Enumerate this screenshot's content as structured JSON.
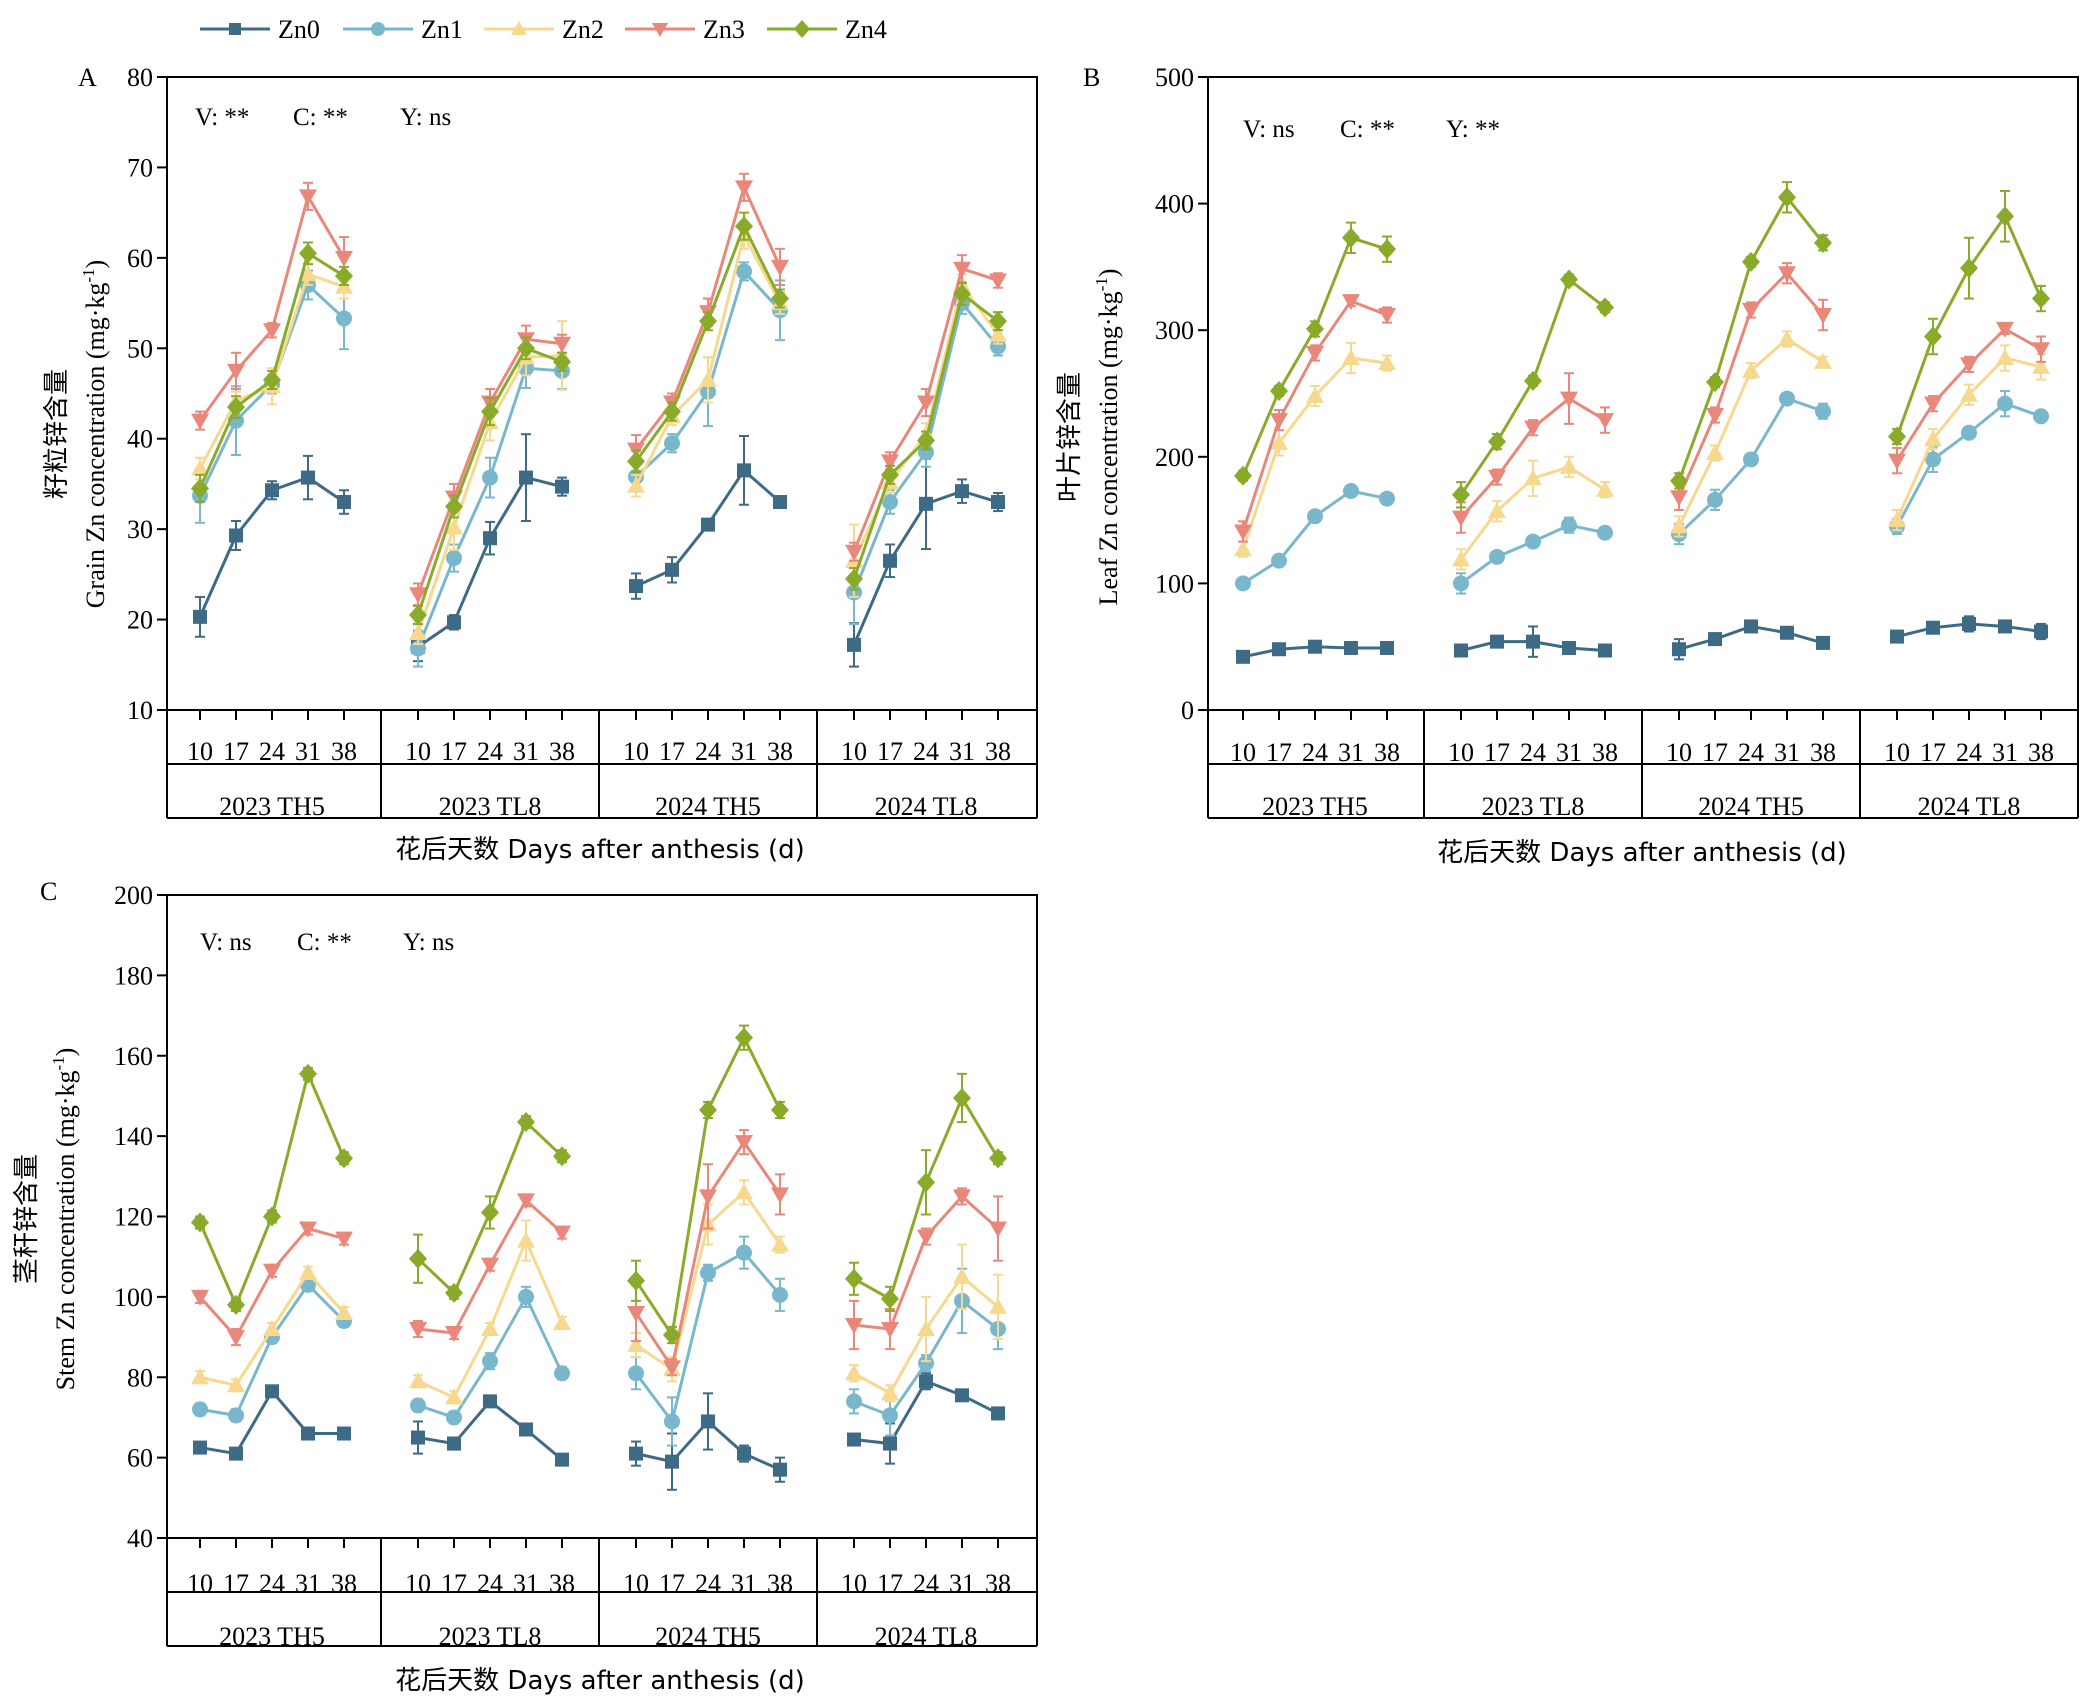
{
  "legend": {
    "entries": [
      {
        "name": "Zn0",
        "color": "#3d6a85",
        "marker": "square"
      },
      {
        "name": "Zn1",
        "color": "#79b7cc",
        "marker": "circle"
      },
      {
        "name": "Zn2",
        "color": "#f6d98f",
        "marker": "triangle-up"
      },
      {
        "name": "Zn3",
        "color": "#e9877b",
        "marker": "triangle-down"
      },
      {
        "name": "Zn4",
        "color": "#8aaa2a",
        "marker": "diamond"
      }
    ]
  },
  "chart_data": [
    {
      "panel": "A",
      "type": "line",
      "title": "",
      "annotation": [
        "V: **",
        "C: **",
        "Y: ns"
      ],
      "ylabel_cn": "籽粒锌含量",
      "ylabel": "Grain Zn concentration (mg·kg",
      "ylabel_sup": "-1",
      "ylabel_end": ")",
      "xlabel": "花后天数 Days after anthesis (d)",
      "ylim": [
        10,
        80
      ],
      "yticks": [
        10,
        20,
        30,
        40,
        50,
        60,
        70,
        80
      ],
      "days": [
        "10",
        "17",
        "24",
        "31",
        "38"
      ],
      "groups": [
        "2023 TH5",
        "2023 TL8",
        "2024 TH5",
        "2024 TL8"
      ],
      "series": [
        {
          "name": "Zn0",
          "values": [
            [
              20.3,
              29.3,
              34.3,
              35.7,
              33.0
            ],
            [
              17.0,
              19.7,
              29.0,
              35.7,
              34.7
            ],
            [
              23.7,
              25.5,
              30.5,
              36.5,
              33.0
            ],
            [
              17.2,
              26.5,
              32.8,
              34.2,
              33.0
            ]
          ],
          "errors": [
            [
              2.2,
              1.6,
              1.0,
              2.4,
              1.3
            ],
            [
              1.6,
              0.8,
              1.8,
              4.8,
              1.0
            ],
            [
              1.4,
              1.4,
              0.5,
              3.8,
              0.4
            ],
            [
              2.4,
              1.8,
              5.0,
              1.3,
              1.0
            ]
          ]
        },
        {
          "name": "Zn1",
          "values": [
            [
              33.7,
              42.0,
              46.0,
              57.0,
              53.3
            ],
            [
              16.8,
              26.8,
              35.7,
              47.8,
              47.5
            ],
            [
              35.8,
              39.5,
              45.2,
              58.5,
              54.2
            ],
            [
              23.0,
              33.0,
              38.5,
              55.0,
              50.2
            ]
          ],
          "errors": [
            [
              3.0,
              3.8,
              1.0,
              1.6,
              3.4
            ],
            [
              2.0,
              1.5,
              2.2,
              2.2,
              2.0
            ],
            [
              1.4,
              1.0,
              3.8,
              1.0,
              3.3
            ],
            [
              3.5,
              1.3,
              1.6,
              1.2,
              1.0
            ]
          ]
        },
        {
          "name": "Zn2",
          "values": [
            [
              36.7,
              44.2,
              45.8,
              58.2,
              56.8
            ],
            [
              18.5,
              30.2,
              41.8,
              49.0,
              49.2
            ],
            [
              34.8,
              42.5,
              46.5,
              62.5,
              55.0
            ],
            [
              26.5,
              35.2,
              40.5,
              57.0,
              51.5
            ]
          ],
          "errors": [
            [
              1.2,
              1.0,
              2.0,
              1.2,
              1.3
            ],
            [
              1.2,
              2.5,
              2.0,
              2.0,
              3.8
            ],
            [
              1.2,
              1.0,
              2.5,
              1.5,
              1.2
            ],
            [
              4.0,
              1.2,
              1.2,
              1.2,
              1.0
            ]
          ]
        },
        {
          "name": "Zn3",
          "values": [
            [
              42.0,
              47.5,
              52.0,
              66.8,
              60.0
            ],
            [
              22.8,
              33.5,
              44.0,
              51.0,
              50.5
            ],
            [
              38.8,
              44.0,
              54.0,
              67.8,
              59.0
            ],
            [
              27.5,
              37.5,
              44.0,
              58.8,
              57.5
            ]
          ],
          "errors": [
            [
              1.0,
              2.0,
              0.8,
              1.5,
              2.3
            ],
            [
              1.2,
              1.5,
              1.5,
              1.5,
              1.0
            ],
            [
              1.6,
              1.0,
              1.5,
              1.5,
              2.0
            ],
            [
              1.0,
              1.0,
              1.5,
              1.5,
              0.8
            ]
          ]
        },
        {
          "name": "Zn4",
          "values": [
            [
              34.5,
              43.5,
              46.5,
              60.5,
              58.0
            ],
            [
              20.5,
              32.5,
              43.0,
              50.0,
              48.5
            ],
            [
              37.5,
              43.0,
              53.0,
              63.5,
              55.5
            ],
            [
              24.5,
              36.0,
              39.8,
              56.0,
              53.0
            ]
          ],
          "errors": [
            [
              1.5,
              1.2,
              1.0,
              1.2,
              1.0
            ],
            [
              1.0,
              1.2,
              1.5,
              1.2,
              1.0
            ],
            [
              1.2,
              1.0,
              1.0,
              1.5,
              1.0
            ],
            [
              1.2,
              1.0,
              1.0,
              1.2,
              1.0
            ]
          ]
        }
      ]
    },
    {
      "panel": "B",
      "type": "line",
      "title": "",
      "annotation": [
        "V: ns",
        "C: **",
        "Y: **"
      ],
      "ylabel_cn": "叶片锌含量",
      "ylabel": "Leaf Zn concentration (mg·kg",
      "ylabel_sup": "-1",
      "ylabel_end": ")",
      "xlabel": "花后天数 Days after anthesis (d)",
      "ylim": [
        0,
        500
      ],
      "yticks": [
        0,
        100,
        200,
        300,
        400,
        500
      ],
      "days": [
        "10",
        "17",
        "24",
        "31",
        "38"
      ],
      "groups": [
        "2023 TH5",
        "2023 TL8",
        "2024 TH5",
        "2024 TL8"
      ],
      "series": [
        {
          "name": "Zn0",
          "values": [
            [
              42,
              48,
              50,
              49,
              49
            ],
            [
              47,
              54,
              54,
              49,
              47
            ],
            [
              48,
              56,
              66,
              61,
              53
            ],
            [
              58,
              65,
              68,
              66,
              62
            ]
          ],
          "errors": [
            [
              3,
              3,
              3,
              3,
              3
            ],
            [
              3,
              3,
              12,
              3,
              3
            ],
            [
              8,
              4,
              3,
              3,
              3
            ],
            [
              3,
              3,
              6,
              3,
              6
            ]
          ]
        },
        {
          "name": "Zn1",
          "values": [
            [
              100,
              118,
              153,
              173,
              167
            ],
            [
              100,
              121,
              133,
              146,
              140
            ],
            [
              139,
              166,
              198,
              246,
              236
            ],
            [
              145,
              198,
              219,
              242,
              232
            ]
          ],
          "errors": [
            [
              3,
              4,
              4,
              4,
              4
            ],
            [
              8,
              4,
              4,
              6,
              4
            ],
            [
              8,
              8,
              4,
              4,
              6
            ],
            [
              6,
              10,
              4,
              10,
              4
            ]
          ]
        },
        {
          "name": "Zn2",
          "values": [
            [
              127,
              211,
              248,
              278,
              274
            ],
            [
              119,
              157,
              183,
              192,
              174
            ],
            [
              145,
              203,
              268,
              293,
              275
            ],
            [
              150,
              214,
              249,
              278,
              271
            ]
          ],
          "errors": [
            [
              6,
              10,
              8,
              12,
              6
            ],
            [
              8,
              8,
              14,
              8,
              6
            ],
            [
              8,
              6,
              6,
              6,
              4
            ],
            [
              8,
              8,
              8,
              10,
              10
            ]
          ]
        },
        {
          "name": "Zn3",
          "values": [
            [
              141,
              229,
              282,
              323,
              312
            ],
            [
              152,
              184,
              223,
              246,
              229
            ],
            [
              168,
              233,
              316,
              345,
              312
            ],
            [
              197,
              242,
              273,
              301,
              285
            ]
          ],
          "errors": [
            [
              8,
              8,
              6,
              4,
              6
            ],
            [
              12,
              6,
              6,
              20,
              10
            ],
            [
              10,
              6,
              6,
              8,
              12
            ],
            [
              10,
              6,
              6,
              4,
              10
            ]
          ]
        },
        {
          "name": "Zn4",
          "values": [
            [
              185,
              252,
              301,
              373,
              364
            ],
            [
              170,
              212,
              260,
              340,
              318
            ],
            [
              181,
              259,
              354,
              405,
              369
            ],
            [
              216,
              295,
              349,
              390,
              325
            ]
          ],
          "errors": [
            [
              4,
              4,
              6,
              12,
              10
            ],
            [
              10,
              6,
              4,
              4,
              4
            ],
            [
              6,
              4,
              4,
              12,
              6
            ],
            [
              6,
              14,
              24,
              20,
              10
            ]
          ]
        }
      ]
    },
    {
      "panel": "C",
      "type": "line",
      "title": "",
      "annotation": [
        "V: ns",
        "C: **",
        "Y: ns"
      ],
      "ylabel_cn": "茎秆锌含量",
      "ylabel": "Stem Zn concentration (mg·kg",
      "ylabel_sup": "-1",
      "ylabel_end": ")",
      "xlabel": "花后天数 Days after anthesis (d)",
      "ylim": [
        40,
        200
      ],
      "yticks": [
        40,
        60,
        80,
        100,
        120,
        140,
        160,
        180,
        200
      ],
      "days": [
        "10",
        "17",
        "24",
        "31",
        "38"
      ],
      "groups": [
        "2023 TH5",
        "2023 TL8",
        "2024 TH5",
        "2024 TL8"
      ],
      "series": [
        {
          "name": "Zn0",
          "values": [
            [
              62.5,
              61,
              76.5,
              66,
              66
            ],
            [
              65,
              63.5,
              74,
              67,
              59.5
            ],
            [
              61,
              59,
              69,
              61,
              57
            ],
            [
              64.5,
              63.5,
              79,
              75.5,
              71
            ]
          ],
          "errors": [
            [
              1,
              1,
              1,
              1,
              1
            ],
            [
              4,
              1.5,
              1,
              1,
              1
            ],
            [
              3,
              7,
              7,
              2,
              3
            ],
            [
              1,
              5,
              2,
              1,
              1
            ]
          ]
        },
        {
          "name": "Zn1",
          "values": [
            [
              72,
              70.5,
              90,
              103,
              94
            ],
            [
              73,
              70,
              84,
              100,
              81
            ],
            [
              81,
              69,
              106,
              111,
              100.5
            ],
            [
              74,
              70.5,
              83.5,
              99,
              92
            ]
          ],
          "errors": [
            [
              1.5,
              1.5,
              1.5,
              1.5,
              1.5
            ],
            [
              1.5,
              1.5,
              2,
              2.5,
              1.5
            ],
            [
              4,
              6,
              2,
              4,
              4
            ],
            [
              3,
              5,
              2,
              8,
              5
            ]
          ]
        },
        {
          "name": "Zn2",
          "values": [
            [
              80,
              78,
              92,
              106,
              96
            ],
            [
              79,
              75,
              92,
              114,
              93.5
            ],
            [
              88,
              82,
              118,
              126,
              113
            ],
            [
              81,
              76,
              92,
              105,
              97.5
            ]
          ],
          "errors": [
            [
              1.5,
              1.5,
              1.5,
              1.5,
              1.5
            ],
            [
              1.5,
              1.5,
              1.5,
              5,
              1.5
            ],
            [
              3,
              3,
              5,
              3,
              2
            ],
            [
              2,
              2,
              8,
              8,
              8
            ]
          ]
        },
        {
          "name": "Zn3",
          "values": [
            [
              100,
              90,
              106.5,
              117,
              114.5
            ],
            [
              92,
              91,
              108,
              124,
              116
            ],
            [
              96,
              82.5,
              125,
              138.5,
              125.5
            ],
            [
              93,
              92,
              115,
              125,
              117
            ]
          ],
          "errors": [
            [
              1.5,
              2,
              1.5,
              1.5,
              1.5
            ],
            [
              2,
              1.5,
              1.5,
              1.5,
              1.5
            ],
            [
              7,
              2,
              8,
              3,
              5
            ],
            [
              6,
              5,
              2,
              2,
              8
            ]
          ]
        },
        {
          "name": "Zn4",
          "values": [
            [
              118.5,
              98,
              120,
              155.5,
              134.5
            ],
            [
              109.5,
              101,
              121,
              143.5,
              135
            ],
            [
              104,
              90.5,
              146.5,
              164.5,
              146.5
            ],
            [
              104.5,
              99.5,
              128.5,
              149.5,
              134.5
            ]
          ],
          "errors": [
            [
              1.5,
              1.5,
              1.5,
              1.5,
              1.5
            ],
            [
              6,
              1.5,
              4,
              1.5,
              1.5
            ],
            [
              5,
              2,
              2,
              3,
              2
            ],
            [
              4,
              3,
              8,
              6,
              1.5
            ]
          ]
        }
      ]
    }
  ]
}
